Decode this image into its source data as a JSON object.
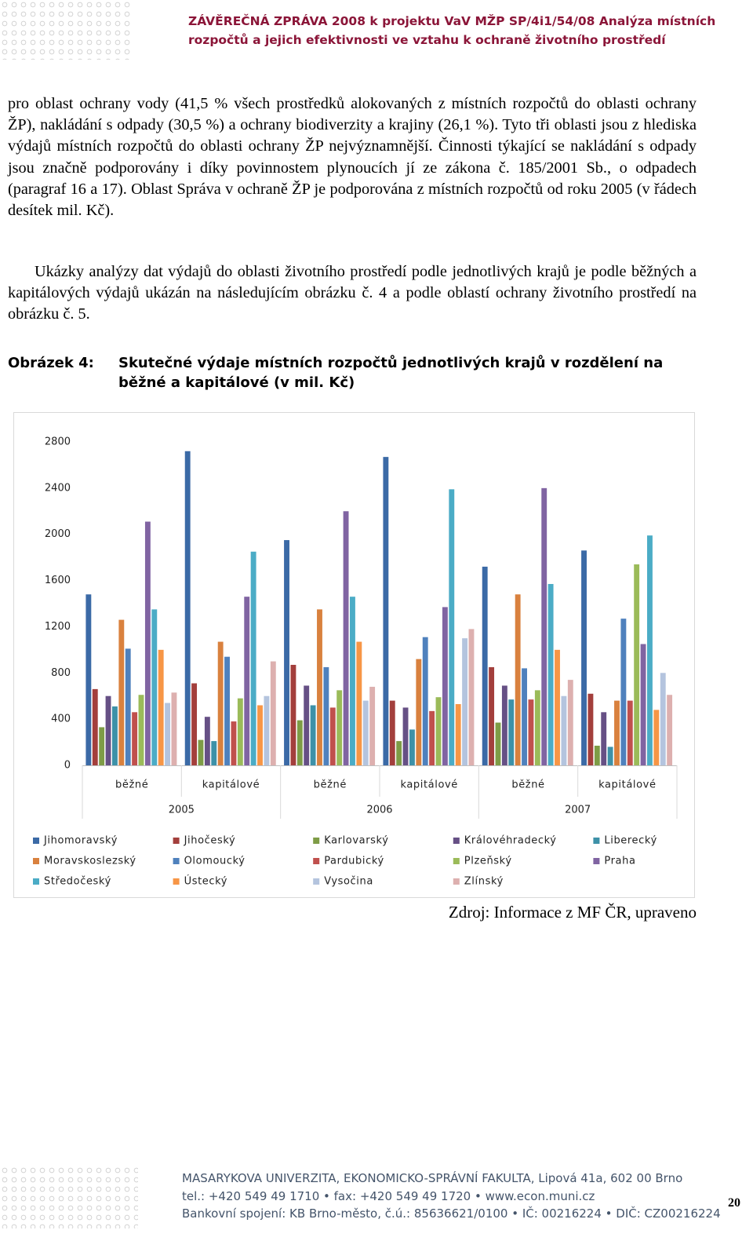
{
  "header": {
    "line1": "ZÁVĚREČNÁ ZPRÁVA 2008 k projektu VaV MŽP SP/4i1/54/08 Analýza místních",
    "line2": "rozpočtů a jejich efektivnosti ve vztahu k ochraně životního prostředí"
  },
  "paragraphs": [
    "pro oblast ochrany vody (41,5 % všech prostředků alokovaných z místních rozpočtů do oblasti ochrany ŽP), nakládání s odpady (30,5 %) a ochrany biodiverzity a krajiny (26,1 %). Tyto tři oblasti jsou z hlediska výdajů místních rozpočtů do oblasti ochrany ŽP nejvýznamnější. Činnosti týkající se nakládání s odpady jsou značně podporovány i díky povinnostem plynoucích jí ze zákona č. 185/2001 Sb., o odpadech (paragraf 16 a 17). Oblast Správa v ochraně ŽP je podporována z místních rozpočtů od roku 2005 (v řádech desítek mil. Kč).",
    "Ukázky analýzy dat výdajů do oblasti životního prostředí podle jednotlivých krajů je podle běžných a kapitálových výdajů ukázán na následujícím obrázku č. 4 a podle oblastí ochrany životního prostředí na obrázku č. 5."
  ],
  "figure": {
    "label": "Obrázek 4:",
    "caption": "Skutečné výdaje místních rozpočtů jednotlivých krajů v rozdělení na běžné a kapitálové (v mil. Kč)"
  },
  "chart_data": {
    "type": "bar",
    "categories": [
      "běžné",
      "kapitálové",
      "běžné",
      "kapitálové",
      "běžné",
      "kapitálové"
    ],
    "category_groups": [
      "2005",
      "2006",
      "2007"
    ],
    "ylim": [
      0,
      2800
    ],
    "yticks": [
      0,
      400,
      800,
      1200,
      1600,
      2000,
      2400,
      2800
    ],
    "grid": false,
    "legend": "bottom",
    "series": [
      {
        "name": "Jihomoravský",
        "color": "#3b6aa6",
        "values": [
          1480,
          2720,
          1950,
          2670,
          1720,
          1860
        ]
      },
      {
        "name": "Jihočeský",
        "color": "#a33f3c",
        "values": [
          660,
          710,
          870,
          560,
          850,
          620
        ]
      },
      {
        "name": "Karlovarský",
        "color": "#7e9c46",
        "values": [
          330,
          220,
          390,
          210,
          370,
          170
        ]
      },
      {
        "name": "Královéhradecký",
        "color": "#665085",
        "values": [
          600,
          420,
          690,
          500,
          690,
          460
        ]
      },
      {
        "name": "Liberecký",
        "color": "#3d91a8",
        "values": [
          510,
          210,
          520,
          310,
          570,
          160
        ]
      },
      {
        "name": "Moravskoslezský",
        "color": "#d9813e",
        "values": [
          1260,
          1070,
          1350,
          920,
          1480,
          560
        ]
      },
      {
        "name": "Olomoucký",
        "color": "#4f81bd",
        "values": [
          1010,
          940,
          850,
          1110,
          840,
          1270
        ]
      },
      {
        "name": "Pardubický",
        "color": "#c0504d",
        "values": [
          460,
          380,
          500,
          470,
          570,
          560
        ]
      },
      {
        "name": "Plzeňský",
        "color": "#9bbb59",
        "values": [
          610,
          580,
          650,
          590,
          650,
          1740
        ]
      },
      {
        "name": "Praha",
        "color": "#8064a2",
        "values": [
          2110,
          1460,
          2200,
          1370,
          2400,
          1050
        ]
      },
      {
        "name": "Středočeský",
        "color": "#4bacc6",
        "values": [
          1350,
          1850,
          1460,
          2390,
          1570,
          1990
        ]
      },
      {
        "name": "Ústecký",
        "color": "#f79646",
        "values": [
          1000,
          520,
          1070,
          530,
          1000,
          480
        ]
      },
      {
        "name": "Vysočina",
        "color": "#b4c4de",
        "values": [
          540,
          600,
          560,
          1100,
          600,
          800
        ]
      },
      {
        "name": "Zlínský",
        "color": "#ddb0af",
        "values": [
          630,
          900,
          680,
          1180,
          740,
          610
        ]
      }
    ]
  },
  "source": "Zdroj: Informace z MF ČR, upraveno",
  "footer": {
    "lines": [
      "MASARYKOVA UNIVERZITA, EKONOMICKO-SPRÁVNÍ FAKULTA, Lipová 41a, 602 00 Brno",
      "tel.: +420 549 49 1710 • fax: +420 549 49 1720 • www.econ.muni.cz",
      "Bankovní spojení: KB Brno-město, č.ú.: 85636621/0100 • IČ: 00216224 • DIČ: CZ00216224"
    ]
  },
  "page_number": "20"
}
